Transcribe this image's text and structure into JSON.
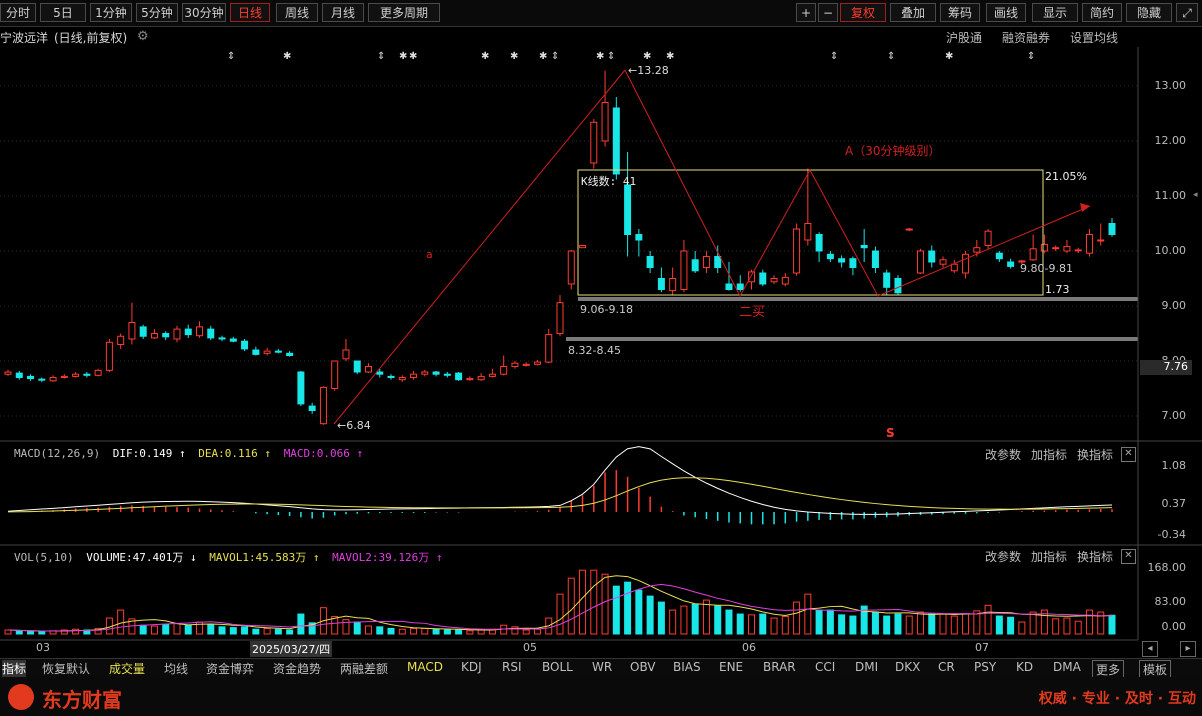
{
  "toolbar": {
    "left_buttons": [
      "分时",
      "5日",
      "1分钟",
      "5分钟",
      "30分钟",
      "日线",
      "周线",
      "月线",
      "更多周期"
    ],
    "right_buttons": [
      "+",
      "−",
      "复权",
      "叠加",
      "筹码",
      "画线",
      "显示",
      "简约",
      "隐藏"
    ]
  },
  "title": {
    "stock": "宁波远洋",
    "mode": "(日线,前复权)",
    "links": [
      "沪股通",
      "融资融券",
      "设置均线"
    ]
  },
  "price_chart": {
    "ylabels": [
      "13.00",
      "12.00",
      "11.00",
      "10.00",
      "9.00",
      "8.00",
      "7.00"
    ],
    "current_price": "7.76",
    "annotations": {
      "high": "13.28",
      "low": "6.84",
      "label_a": "a",
      "label_A": "A（30分钟级别）",
      "k_count": "K线数: 41",
      "pct": "21.05%",
      "ratio": "1.73",
      "buy2": "二买",
      "gap1": "9.06-9.18",
      "gap2": "8.32-8.45",
      "range": "9.80-9.81",
      "s_mark": "S"
    }
  },
  "chart_data": [
    {
      "type": "candlestick",
      "title": "宁波远洋 (日线,前复权)",
      "x_ticks": [
        "03",
        "2025/03/27/四",
        "05",
        "06",
        "07"
      ],
      "ylim": [
        6.6,
        13.5
      ],
      "notable_points": {
        "high": 13.28,
        "low": 6.84,
        "last": 7.76
      }
    },
    {
      "type": "bar",
      "title": "MACD(12,26,9)",
      "series": [
        {
          "name": "DIF",
          "last": 0.149
        },
        {
          "name": "DEA",
          "last": 0.116
        },
        {
          "name": "MACD",
          "last": 0.066
        }
      ],
      "ylabels": [
        "1.08",
        "0.37",
        "-0.34"
      ]
    },
    {
      "type": "bar",
      "title": "VOL(5,10)",
      "series": [
        {
          "name": "VOLUME",
          "last": "47.401万"
        },
        {
          "name": "MAVOL1",
          "last": "45.583万"
        },
        {
          "name": "MAVOL2",
          "last": "39.126万"
        }
      ],
      "ylabels": [
        "168.00",
        "83.00",
        "0.00"
      ]
    }
  ],
  "macd": {
    "name": "MACD(12,26,9)",
    "dif": "DIF:0.149 ↑",
    "dea": "DEA:0.116 ↑",
    "macd": "MACD:0.066 ↑",
    "ylabels": [
      "1.08",
      "0.37",
      "-0.34"
    ]
  },
  "vol": {
    "name": "VOL(5,10)",
    "volume": "VOLUME:47.401万 ↓",
    "mavol1": "MAVOL1:45.583万 ↑",
    "mavol2": "MAVOL2:39.126万 ↑",
    "ylabels": [
      "168.00",
      "83.00",
      "0.00"
    ]
  },
  "panel_actions": [
    "改参数",
    "加指标",
    "换指标"
  ],
  "x_axis": [
    "03",
    "2025/03/27/四",
    "05",
    "06",
    "07"
  ],
  "bottom_tabs": [
    "指标",
    "恢复默认",
    "成交量",
    "均线",
    "资金博弈",
    "资金趋势",
    "两融差额",
    "MACD",
    "KDJ",
    "RSI",
    "BOLL",
    "WR",
    "OBV",
    "BIAS",
    "ENE",
    "BRAR",
    "CCI",
    "DMI",
    "DKX",
    "CR",
    "PSY",
    "KD",
    "DMA",
    "更多",
    "模板"
  ],
  "footer": {
    "brand": "东方财富",
    "slogan": "权威 · 专业 · 及时 · 互动"
  },
  "colors": {
    "up": "#ff3b30",
    "down": "#19e6e6",
    "yellow": "#e8e050",
    "magenta": "#e040e0"
  }
}
